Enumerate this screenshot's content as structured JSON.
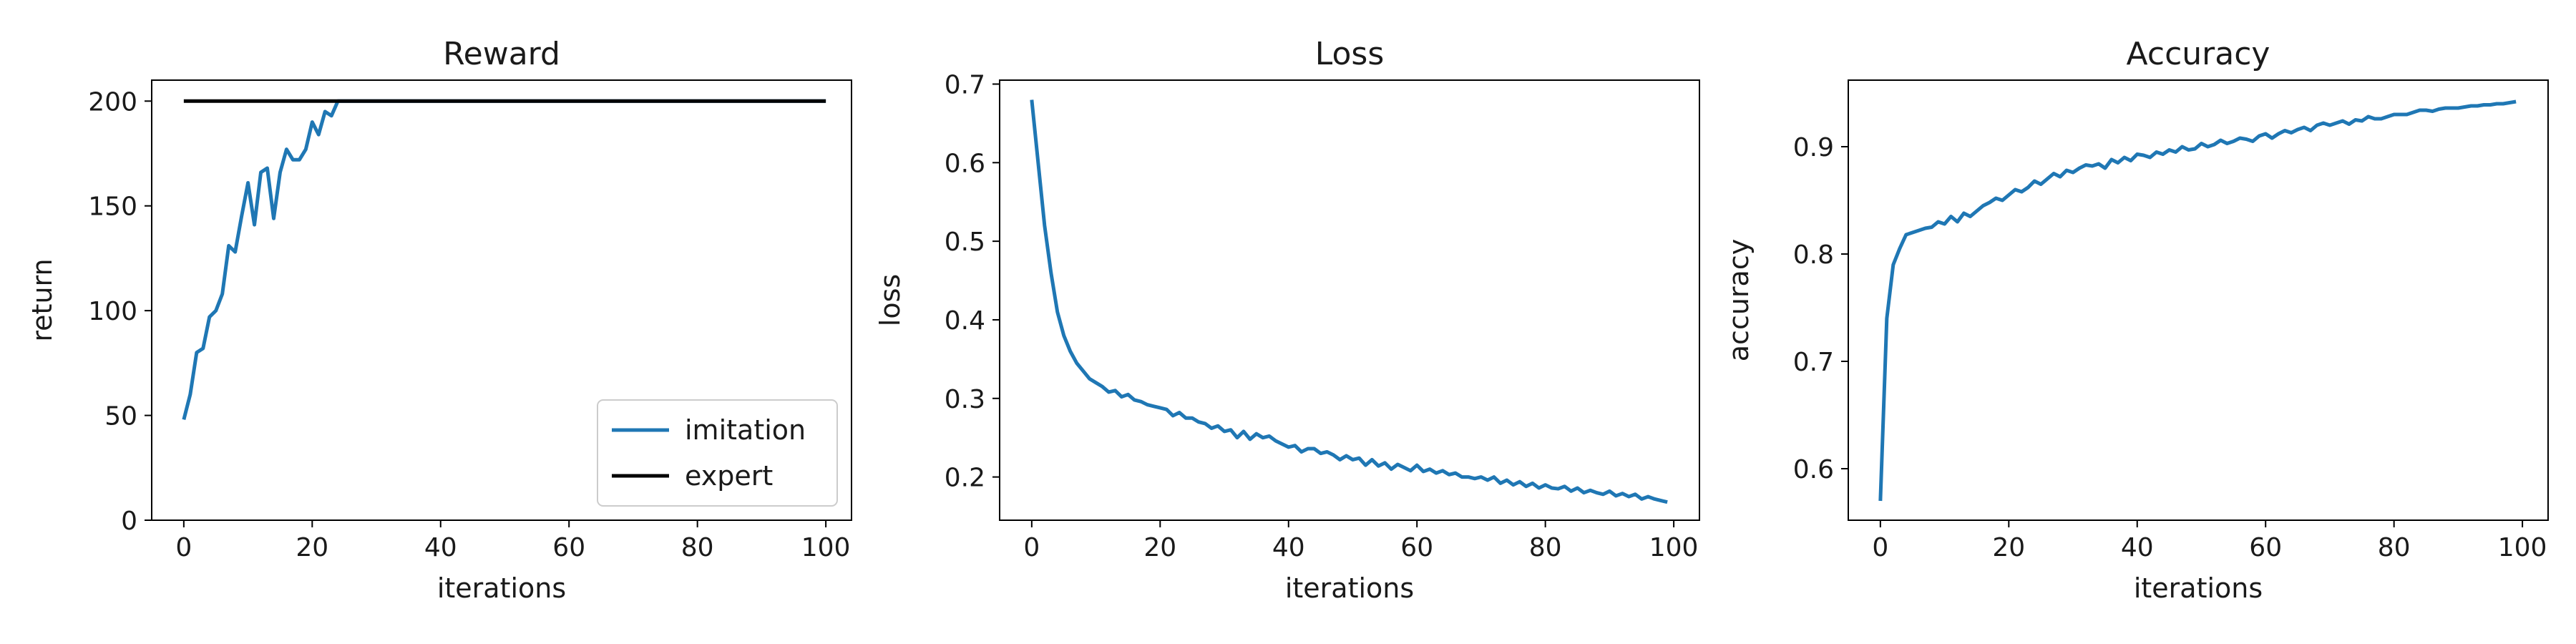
{
  "chart_data": [
    {
      "type": "line",
      "title": "Reward",
      "xlabel": "iterations",
      "ylabel": "return",
      "xlim": [
        -5,
        104
      ],
      "ylim": [
        0,
        210
      ],
      "xticks": [
        0,
        20,
        40,
        60,
        80,
        100
      ],
      "yticks": [
        0,
        50,
        100,
        150,
        200
      ],
      "xtick_labels": [
        "0",
        "20",
        "40",
        "60",
        "80",
        "100"
      ],
      "ytick_labels": [
        "0",
        "50",
        "100",
        "150",
        "200"
      ],
      "legend": "lower-right",
      "grid": false,
      "series": [
        {
          "name": "imitation",
          "color": "#1f77b4",
          "x": [
            0,
            1,
            2,
            3,
            4,
            5,
            6,
            7,
            8,
            9,
            10,
            11,
            12,
            13,
            14,
            15,
            16,
            17,
            18,
            19,
            20,
            21,
            22,
            23,
            24,
            25,
            26,
            27,
            28,
            29,
            30,
            35,
            40,
            45,
            50,
            55,
            60,
            65,
            70,
            75,
            80,
            85,
            90,
            95,
            100
          ],
          "y": [
            48,
            60,
            80,
            82,
            97,
            100,
            108,
            131,
            128,
            145,
            161,
            141,
            166,
            168,
            144,
            166,
            177,
            172,
            172,
            177,
            190,
            184,
            195,
            193,
            200,
            200,
            200,
            200,
            200,
            200,
            200,
            200,
            200,
            200,
            200,
            200,
            200,
            200,
            200,
            200,
            200,
            200,
            200,
            200,
            200
          ]
        },
        {
          "name": "expert",
          "color": "#000000",
          "x": [
            0,
            100
          ],
          "y": [
            200,
            200
          ]
        }
      ]
    },
    {
      "type": "line",
      "title": "Loss",
      "xlabel": "iterations",
      "ylabel": "loss",
      "xlim": [
        -5,
        104
      ],
      "ylim": [
        0.145,
        0.705
      ],
      "xticks": [
        0,
        20,
        40,
        60,
        80,
        100
      ],
      "yticks": [
        0.2,
        0.3,
        0.4,
        0.5,
        0.6,
        0.7
      ],
      "xtick_labels": [
        "0",
        "20",
        "40",
        "60",
        "80",
        "100"
      ],
      "ytick_labels": [
        "0.2",
        "0.3",
        "0.4",
        "0.5",
        "0.6",
        "0.7"
      ],
      "grid": false,
      "series": [
        {
          "color": "#1f77b4",
          "x": [
            0,
            1,
            2,
            3,
            4,
            5,
            6,
            7,
            8,
            9,
            10,
            11,
            12,
            13,
            14,
            15,
            16,
            17,
            18,
            19,
            20,
            21,
            22,
            23,
            24,
            25,
            26,
            27,
            28,
            29,
            30,
            31,
            32,
            33,
            34,
            35,
            36,
            37,
            38,
            39,
            40,
            41,
            42,
            43,
            44,
            45,
            46,
            47,
            48,
            49,
            50,
            51,
            52,
            53,
            54,
            55,
            56,
            57,
            58,
            59,
            60,
            61,
            62,
            63,
            64,
            65,
            66,
            67,
            68,
            69,
            70,
            71,
            72,
            73,
            74,
            75,
            76,
            77,
            78,
            79,
            80,
            81,
            82,
            83,
            84,
            85,
            86,
            87,
            88,
            89,
            90,
            91,
            92,
            93,
            94,
            95,
            96,
            97,
            98,
            99
          ],
          "y": [
            0.68,
            0.6,
            0.52,
            0.46,
            0.41,
            0.38,
            0.36,
            0.345,
            0.335,
            0.325,
            0.32,
            0.315,
            0.308,
            0.31,
            0.302,
            0.305,
            0.298,
            0.296,
            0.292,
            0.29,
            0.288,
            0.286,
            0.278,
            0.282,
            0.275,
            0.275,
            0.27,
            0.268,
            0.262,
            0.265,
            0.258,
            0.26,
            0.25,
            0.258,
            0.248,
            0.255,
            0.25,
            0.252,
            0.246,
            0.242,
            0.238,
            0.24,
            0.232,
            0.236,
            0.236,
            0.23,
            0.232,
            0.228,
            0.222,
            0.227,
            0.222,
            0.224,
            0.215,
            0.222,
            0.214,
            0.218,
            0.21,
            0.216,
            0.212,
            0.208,
            0.215,
            0.207,
            0.21,
            0.205,
            0.208,
            0.203,
            0.205,
            0.2,
            0.2,
            0.198,
            0.2,
            0.196,
            0.2,
            0.192,
            0.196,
            0.19,
            0.194,
            0.188,
            0.192,
            0.186,
            0.19,
            0.186,
            0.185,
            0.188,
            0.182,
            0.186,
            0.18,
            0.183,
            0.18,
            0.178,
            0.182,
            0.176,
            0.179,
            0.175,
            0.178,
            0.172,
            0.175,
            0.172,
            0.17,
            0.168
          ]
        }
      ]
    },
    {
      "type": "line",
      "title": "Accuracy",
      "xlabel": "iterations",
      "ylabel": "accuracy",
      "xlim": [
        -5,
        104
      ],
      "ylim": [
        0.552,
        0.962
      ],
      "xticks": [
        0,
        20,
        40,
        60,
        80,
        100
      ],
      "yticks": [
        0.6,
        0.7,
        0.8,
        0.9
      ],
      "xtick_labels": [
        "0",
        "20",
        "40",
        "60",
        "80",
        "100"
      ],
      "ytick_labels": [
        "0.6",
        "0.7",
        "0.8",
        "0.9"
      ],
      "grid": false,
      "series": [
        {
          "color": "#1f77b4",
          "x": [
            0,
            1,
            2,
            3,
            4,
            5,
            6,
            7,
            8,
            9,
            10,
            11,
            12,
            13,
            14,
            15,
            16,
            17,
            18,
            19,
            20,
            21,
            22,
            23,
            24,
            25,
            26,
            27,
            28,
            29,
            30,
            31,
            32,
            33,
            34,
            35,
            36,
            37,
            38,
            39,
            40,
            41,
            42,
            43,
            44,
            45,
            46,
            47,
            48,
            49,
            50,
            51,
            52,
            53,
            54,
            55,
            56,
            57,
            58,
            59,
            60,
            61,
            62,
            63,
            64,
            65,
            66,
            67,
            68,
            69,
            70,
            71,
            72,
            73,
            74,
            75,
            76,
            77,
            78,
            79,
            80,
            81,
            82,
            83,
            84,
            85,
            86,
            87,
            88,
            89,
            90,
            91,
            92,
            93,
            94,
            95,
            96,
            97,
            98,
            99
          ],
          "y": [
            0.57,
            0.74,
            0.79,
            0.805,
            0.818,
            0.82,
            0.822,
            0.824,
            0.825,
            0.83,
            0.828,
            0.835,
            0.83,
            0.838,
            0.835,
            0.84,
            0.845,
            0.848,
            0.852,
            0.85,
            0.855,
            0.86,
            0.858,
            0.862,
            0.868,
            0.865,
            0.87,
            0.875,
            0.872,
            0.878,
            0.876,
            0.88,
            0.883,
            0.882,
            0.884,
            0.88,
            0.888,
            0.885,
            0.89,
            0.887,
            0.893,
            0.892,
            0.89,
            0.895,
            0.893,
            0.897,
            0.895,
            0.9,
            0.897,
            0.898,
            0.903,
            0.9,
            0.902,
            0.906,
            0.903,
            0.905,
            0.908,
            0.907,
            0.905,
            0.91,
            0.912,
            0.908,
            0.912,
            0.915,
            0.913,
            0.916,
            0.918,
            0.915,
            0.92,
            0.922,
            0.92,
            0.922,
            0.924,
            0.921,
            0.925,
            0.924,
            0.928,
            0.926,
            0.926,
            0.928,
            0.93,
            0.93,
            0.93,
            0.932,
            0.934,
            0.934,
            0.933,
            0.935,
            0.936,
            0.936,
            0.936,
            0.937,
            0.938,
            0.938,
            0.939,
            0.939,
            0.94,
            0.94,
            0.941,
            0.942
          ]
        }
      ]
    }
  ]
}
